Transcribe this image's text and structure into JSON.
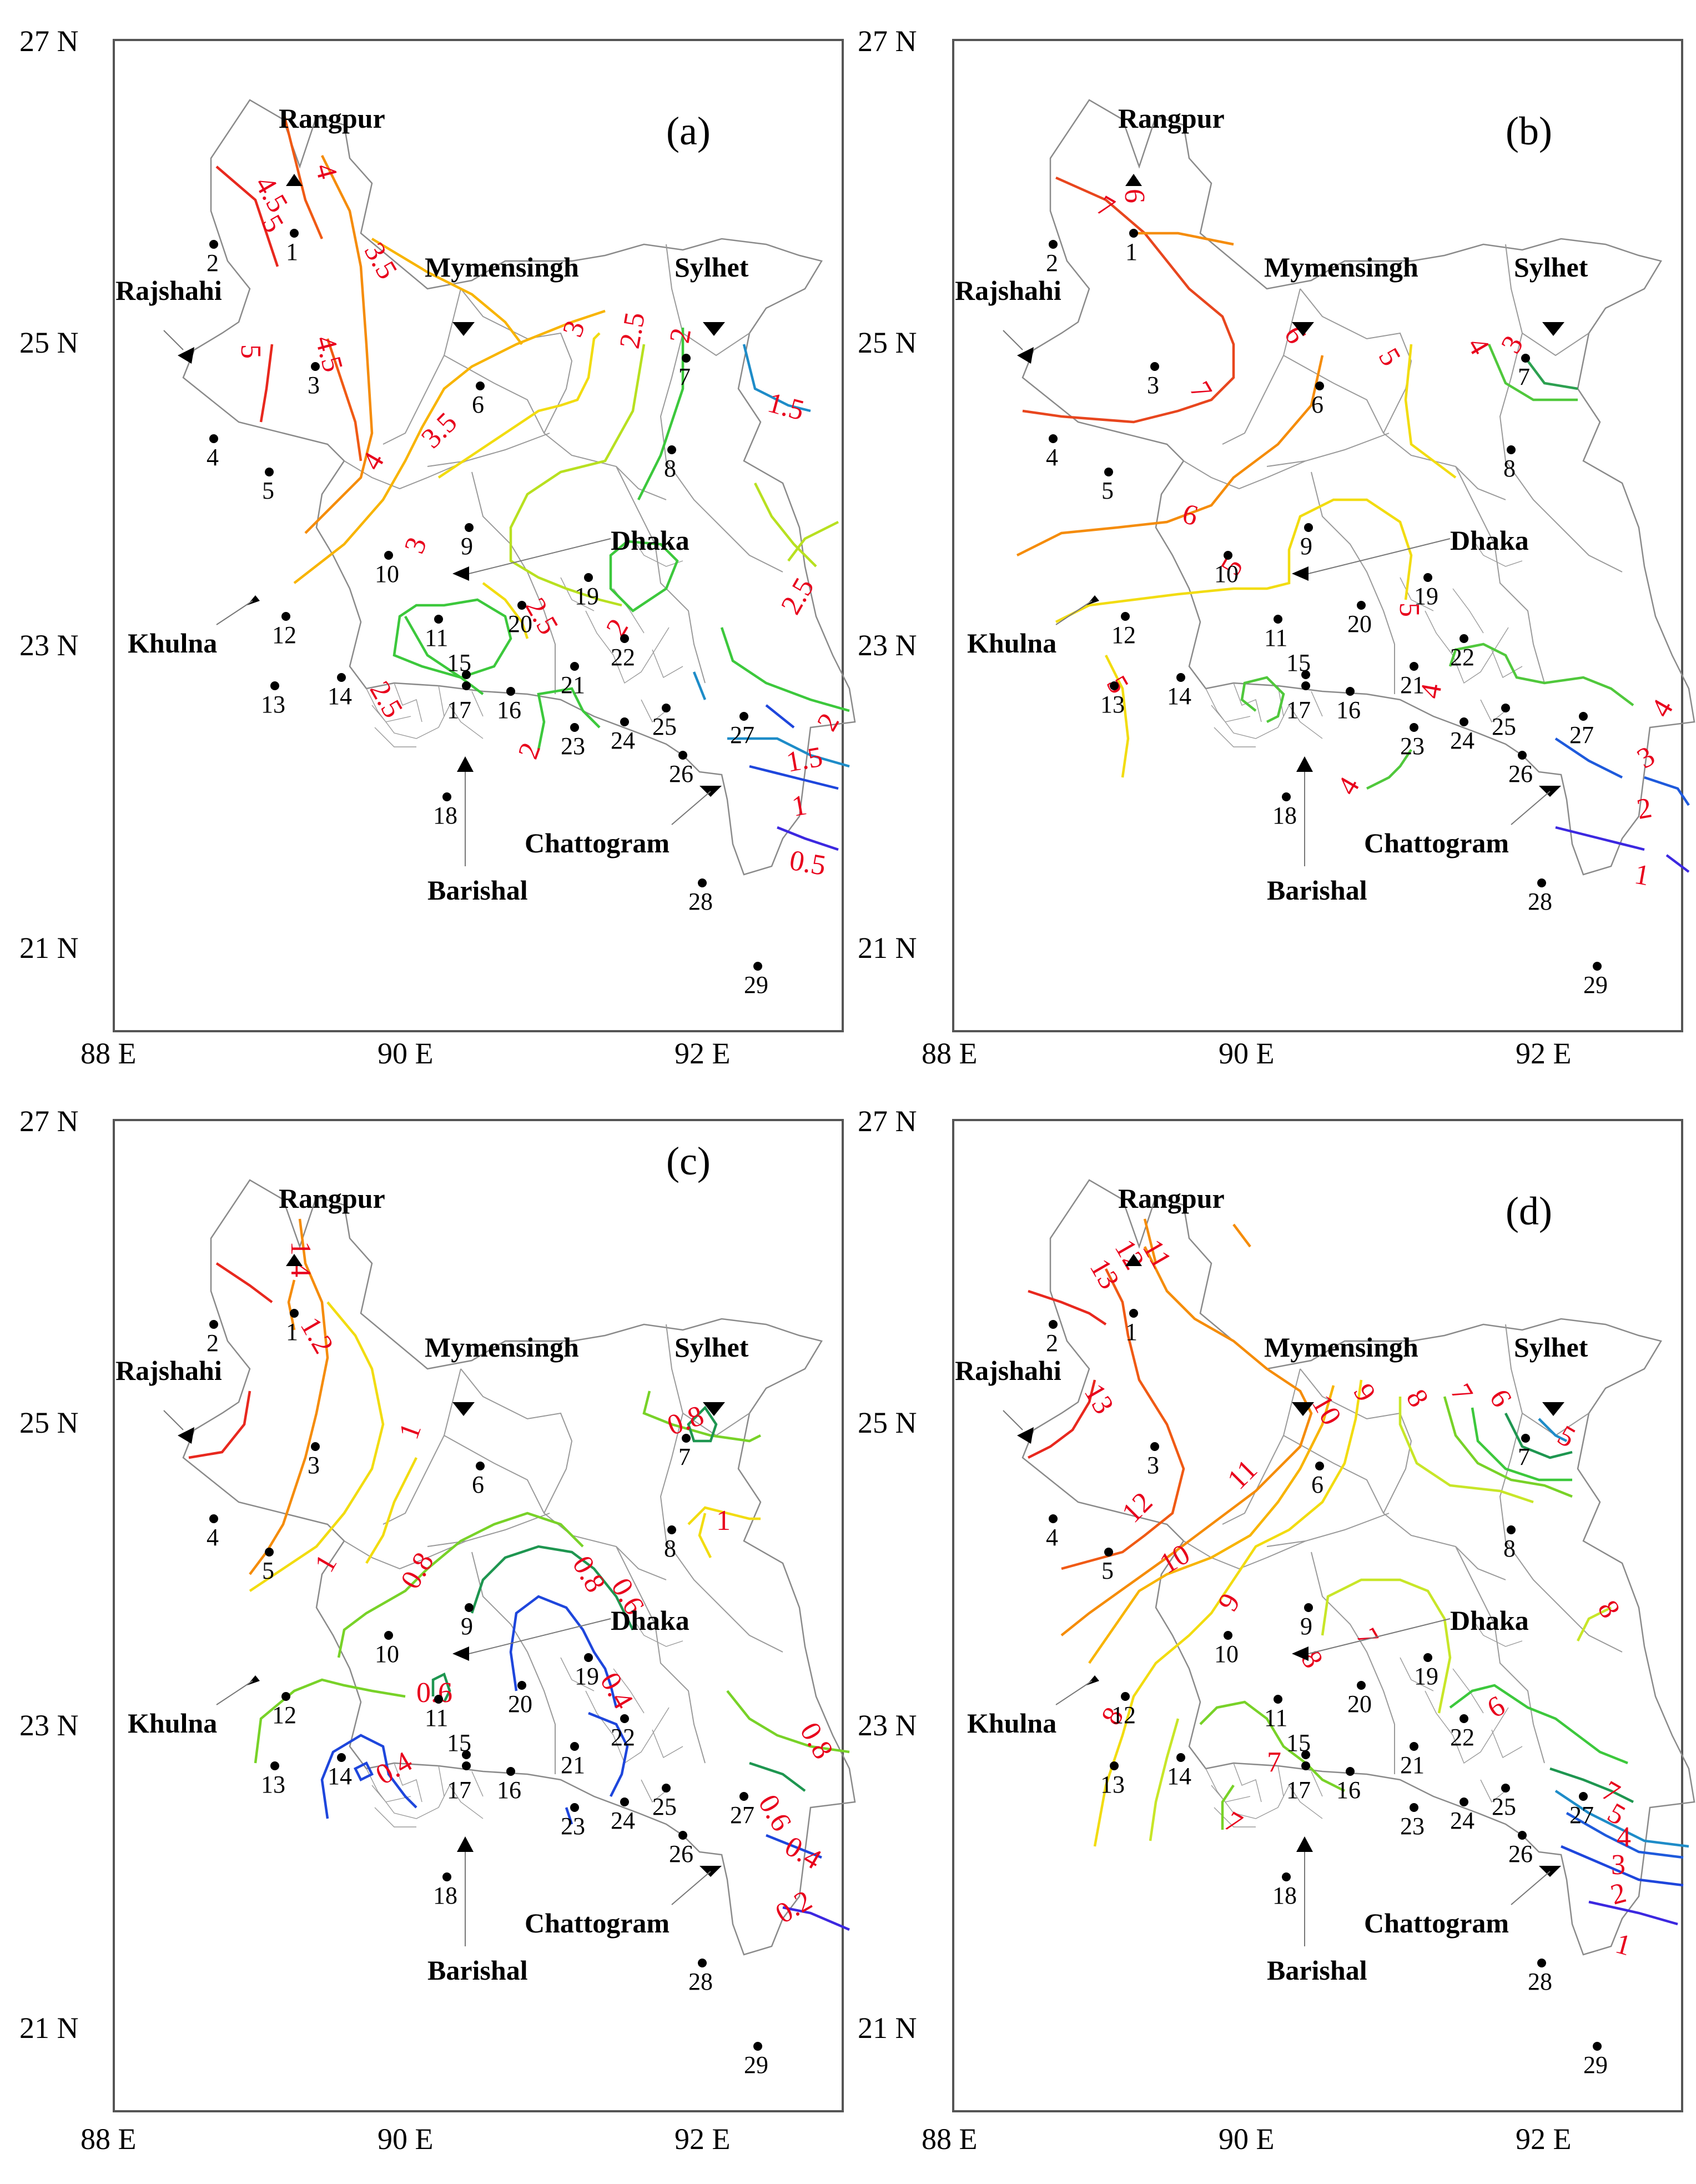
{
  "axes": {
    "lat_labels": [
      "27 N",
      "25 N",
      "23 N",
      "21 N"
    ],
    "lon_labels": [
      "88 E",
      "90 E",
      "92 E"
    ]
  },
  "cities": [
    "Rangpur",
    "Mymensingh",
    "Sylhet",
    "Rajshahi",
    "Dhaka",
    "Khulna",
    "Barishal",
    "Chattogram"
  ],
  "stations": [
    "1",
    "2",
    "3",
    "4",
    "5",
    "6",
    "7",
    "8",
    "9",
    "10",
    "11",
    "12",
    "13",
    "14",
    "15",
    "16",
    "17",
    "18",
    "19",
    "20",
    "21",
    "22",
    "23",
    "24",
    "25",
    "26",
    "27",
    "28",
    "29"
  ],
  "panels": [
    {
      "label": "(a)",
      "contours": [
        {
          "value": "5",
          "color": "#e8281e"
        },
        {
          "value": "4.5",
          "color": "#f05a14"
        },
        {
          "value": "4",
          "color": "#f58c0a"
        },
        {
          "value": "3.5",
          "color": "#f8b400"
        },
        {
          "value": "3",
          "color": "#f2dc10"
        },
        {
          "value": "2.5",
          "color": "#b8e020"
        },
        {
          "value": "2",
          "color": "#3cc83c"
        },
        {
          "value": "1.5",
          "color": "#1e8cc8"
        },
        {
          "value": "1",
          "color": "#1e46dc"
        },
        {
          "value": "0.5",
          "color": "#3c28e0"
        }
      ]
    },
    {
      "label": "(b)",
      "contours": [
        {
          "value": "7",
          "color": "#e8461e"
        },
        {
          "value": "6",
          "color": "#f58c0a"
        },
        {
          "value": "5",
          "color": "#f2dc10"
        },
        {
          "value": "4",
          "color": "#50c83c"
        },
        {
          "value": "3",
          "color": "#2ca050"
        },
        {
          "value": "2",
          "color": "#1e5adc"
        },
        {
          "value": "1",
          "color": "#3c28e0"
        }
      ]
    },
    {
      "label": "(c)",
      "contours": [
        {
          "value": "1.4",
          "color": "#e8281e"
        },
        {
          "value": "1.2",
          "color": "#f58c0a"
        },
        {
          "value": "1",
          "color": "#f2dc10"
        },
        {
          "value": "0.8",
          "color": "#78d228"
        },
        {
          "value": "0.6",
          "color": "#1e9650"
        },
        {
          "value": "0.4",
          "color": "#1e46dc"
        },
        {
          "value": "0.2",
          "color": "#3c28e0"
        }
      ]
    },
    {
      "label": "(d)",
      "contours": [
        {
          "value": "13",
          "color": "#e8281e"
        },
        {
          "value": "12",
          "color": "#f05a14"
        },
        {
          "value": "11",
          "color": "#f58c0a"
        },
        {
          "value": "10",
          "color": "#f8b400"
        },
        {
          "value": "9",
          "color": "#f2dc10"
        },
        {
          "value": "8",
          "color": "#c8e628"
        },
        {
          "value": "7",
          "color": "#78d228"
        },
        {
          "value": "6",
          "color": "#3cc83c"
        },
        {
          "value": "5",
          "color": "#1e9650"
        },
        {
          "value": "4",
          "color": "#1e8cc8"
        },
        {
          "value": "3",
          "color": "#1e5adc"
        },
        {
          "value": "2",
          "color": "#1e46dc"
        },
        {
          "value": "1",
          "color": "#3c28e0"
        }
      ]
    }
  ]
}
